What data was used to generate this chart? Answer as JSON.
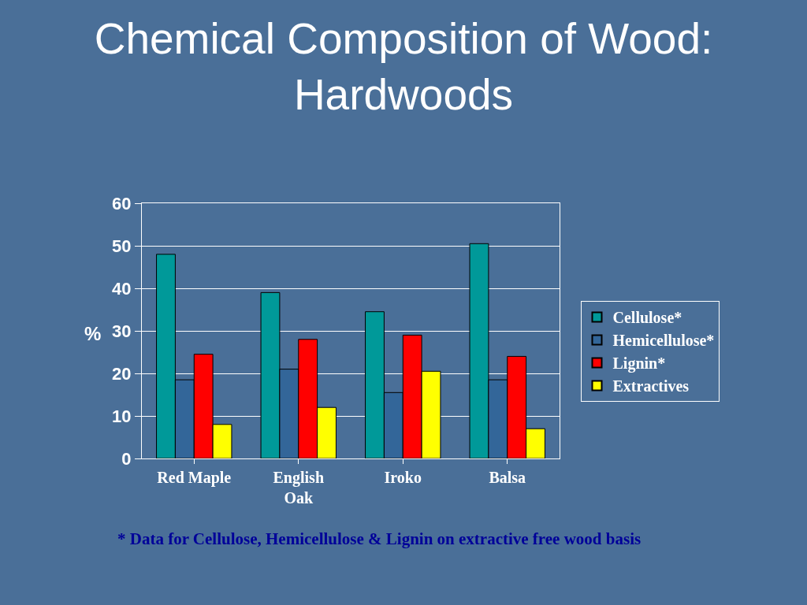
{
  "chart_data": {
    "type": "bar",
    "title": "Chemical Composition of Wood: Hardwoods",
    "ylabel": "%",
    "categories": [
      "Red Maple",
      "English Oak",
      "Iroko",
      "Balsa"
    ],
    "series": [
      {
        "name": "Cellulose*",
        "color": "#009999",
        "values": [
          48,
          39,
          34.5,
          50.5
        ]
      },
      {
        "name": "Hemicellulose*",
        "color": "#336699",
        "values": [
          18.5,
          21,
          15.5,
          18.5
        ]
      },
      {
        "name": "Lignin*",
        "color": "#ff0000",
        "values": [
          24.5,
          28,
          29,
          24
        ]
      },
      {
        "name": "Extractives",
        "color": "#ffff00",
        "values": [
          8,
          12,
          20.5,
          7
        ]
      }
    ],
    "ylim": [
      0,
      60
    ],
    "yticks": [
      0,
      10,
      20,
      30,
      40,
      50,
      60
    ],
    "grid": "y",
    "legend": "right",
    "annotations": [
      "* Data for Cellulose, Hemicellulose & Lignin on extractive free wood basis"
    ]
  }
}
